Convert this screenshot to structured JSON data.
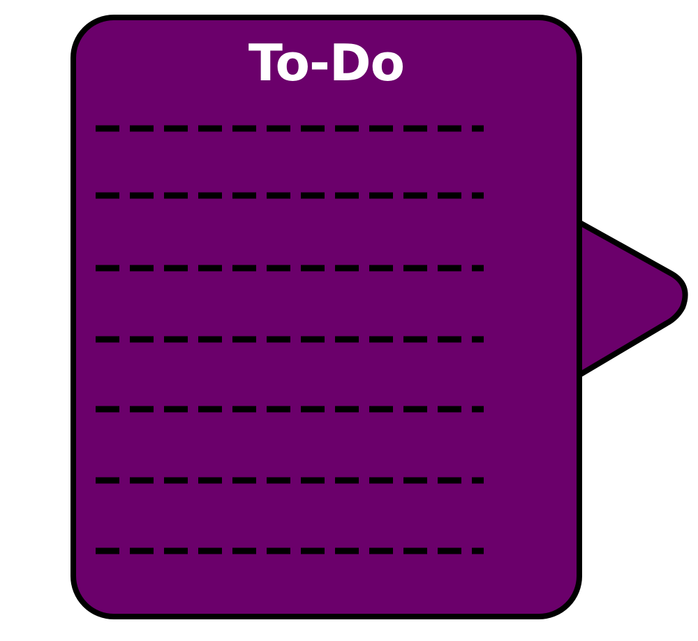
{
  "todo_card": {
    "title": "To-Do",
    "line_count": 7,
    "colors": {
      "fill": "#6b006b",
      "outline": "#000000",
      "title": "#ffffff",
      "lines": "#000000"
    }
  }
}
